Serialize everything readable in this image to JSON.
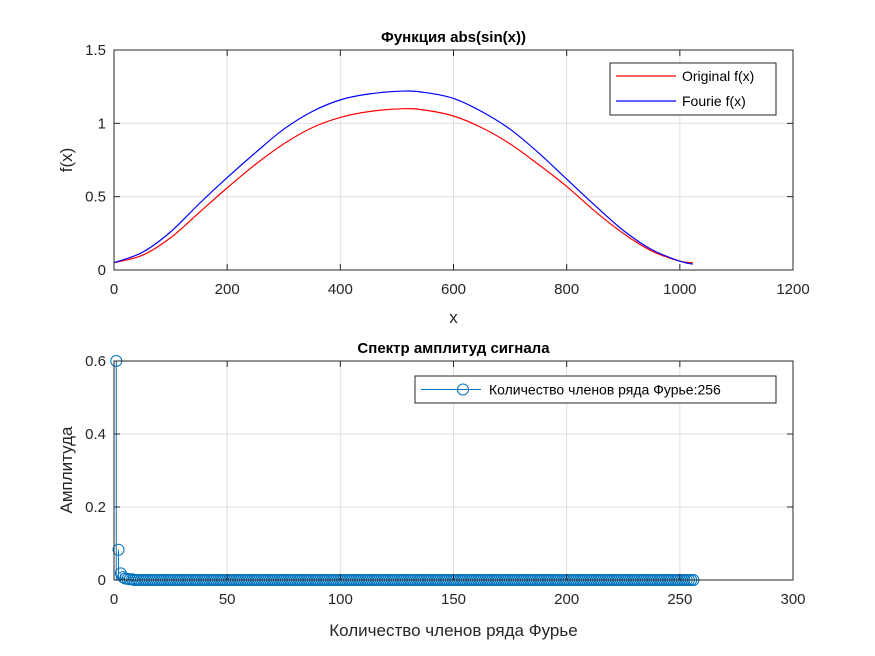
{
  "chart_data": [
    {
      "type": "line",
      "title": "Функция abs(sin(x))",
      "xlabel": "x",
      "ylabel": "f(x)",
      "xlim": [
        0,
        1200
      ],
      "ylim": [
        0,
        1.5
      ],
      "xticks": [
        "0",
        "200",
        "400",
        "600",
        "800",
        "1000",
        "1200"
      ],
      "yticks": [
        "0",
        "0.5",
        "1",
        "1.5"
      ],
      "grid": true,
      "legend_position": "top-right",
      "series": [
        {
          "name": "Original f(x)",
          "color": "#ff0000",
          "x": [
            0,
            50,
            100,
            150,
            200,
            250,
            300,
            350,
            400,
            450,
            512,
            550,
            600,
            650,
            700,
            750,
            800,
            850,
            900,
            950,
            1000,
            1023
          ],
          "y": [
            0.05,
            0.1,
            0.22,
            0.39,
            0.56,
            0.72,
            0.86,
            0.97,
            1.04,
            1.08,
            1.1,
            1.09,
            1.05,
            0.97,
            0.86,
            0.72,
            0.57,
            0.4,
            0.25,
            0.13,
            0.06,
            0.05
          ]
        },
        {
          "name": "Fourie f(x)",
          "color": "#0000ff",
          "x": [
            0,
            50,
            100,
            150,
            200,
            250,
            300,
            350,
            400,
            450,
            512,
            550,
            600,
            650,
            700,
            750,
            800,
            850,
            900,
            950,
            1000,
            1023
          ],
          "y": [
            0.05,
            0.12,
            0.26,
            0.45,
            0.63,
            0.8,
            0.96,
            1.08,
            1.16,
            1.2,
            1.22,
            1.21,
            1.17,
            1.08,
            0.96,
            0.8,
            0.62,
            0.44,
            0.27,
            0.14,
            0.06,
            0.04
          ]
        }
      ]
    },
    {
      "type": "stem",
      "title": "Спектр амплитуд сигнала",
      "xlabel": "Количество членов ряда Фурье",
      "ylabel": "Амплитуда",
      "xlim": [
        0,
        300
      ],
      "ylim": [
        0,
        0.6
      ],
      "xticks": [
        "0",
        "50",
        "100",
        "150",
        "200",
        "250",
        "300"
      ],
      "yticks": [
        "0",
        "0.2",
        "0.4",
        "0.6"
      ],
      "grid": true,
      "legend_position": "top-right",
      "series": [
        {
          "name": "Количество членов ряда Фурье:256",
          "color": "#0072bd",
          "x_start": 1,
          "x_end": 256,
          "head_values": [
            0.6,
            0.083,
            0.018,
            0.008,
            0.004,
            0.003,
            0.002,
            0.002
          ],
          "tail_value": 0.0
        }
      ]
    }
  ]
}
